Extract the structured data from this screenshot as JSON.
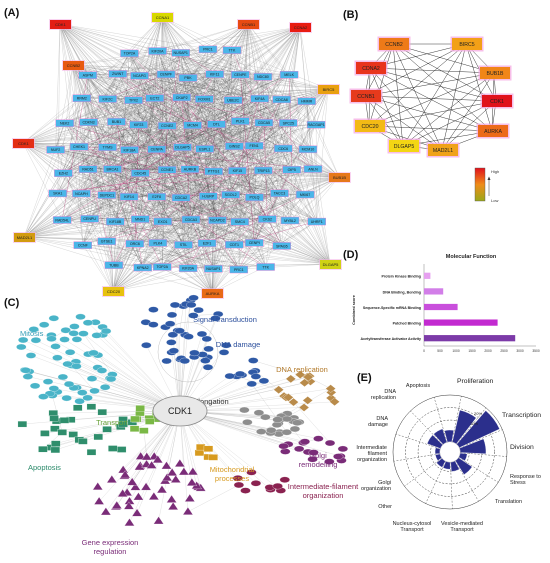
{
  "panels": {
    "a": {
      "label": "(A)",
      "hubs": [
        {
          "name": "CCNA1",
          "color": "#d8d800"
        },
        {
          "name": "CCNB1",
          "color": "#e84a12"
        },
        {
          "name": "BIRC5",
          "color": "#e9a010"
        },
        {
          "name": "CCNB2",
          "color": "#e75a10"
        },
        {
          "name": "CDK1",
          "color": "#e32d14"
        },
        {
          "name": "BUB1B",
          "color": "#e6781b"
        },
        {
          "name": "MAD2L1",
          "color": "#d29b10"
        },
        {
          "name": "CDC20",
          "color": "#e7c20f"
        },
        {
          "name": "AURKA",
          "color": "#e86a17"
        },
        {
          "name": "DLGAP5",
          "color": "#cfd214"
        },
        {
          "name": "CCNA2",
          "color": "#e81c12"
        },
        {
          "name": "CDK1",
          "color": "#e21d15"
        }
      ],
      "nodes": [
        "TOP2A",
        "KIF20A",
        "NUSAP1",
        "PRC1",
        "TTK",
        "ASPM",
        "ZWINT",
        "NCAPG",
        "CENPF",
        "PBK",
        "KIF11",
        "CENPE",
        "NDC80",
        "MELK",
        "RRM2",
        "KIF2C",
        "TPX2",
        "ECT2",
        "CKAP2",
        "FOXM1",
        "UBE2C",
        "KIF4A",
        "CDCA8",
        "HMMR",
        "NEK2",
        "CDKN3",
        "BUB1",
        "KIF23",
        "CCNE2",
        "MCM4",
        "DTL",
        "PLK1",
        "CDCA5",
        "SPC25",
        "RACGAP1",
        "NUF2",
        "CHEK1",
        "TYMS",
        "KIF18A",
        "CENPA",
        "DLGAP5",
        "ESPL1",
        "GINS2",
        "FEN1",
        "CDC6",
        "MCM10",
        "EZH2",
        "RAD51",
        "BRCA1",
        "CDC45",
        "CCNE1",
        "AURKB",
        "PTTG1",
        "KIF15",
        "TRIP13",
        "OIP5",
        "ANLN",
        "SKA1",
        "NCAPH",
        "DEPDC1",
        "KIF14",
        "E2F8",
        "CDCA2",
        "HJURP",
        "SGOL2",
        "POLQ",
        "TACC3",
        "MKI67",
        "RAD54L",
        "CENPU",
        "KIF18B",
        "MND1",
        "EXO1",
        "CDCA3",
        "NCAPD2",
        "SMC4",
        "CKS2",
        "MYBL2",
        "UHRF1",
        "CCNF",
        "GTSE1",
        "ORC6",
        "PLK4",
        "STIL",
        "E2F1",
        "CDT1",
        "CENPI",
        "SPAG5",
        "TUBB",
        "KPNA2"
      ]
    },
    "b": {
      "label": "(B)",
      "nodes": [
        {
          "name": "CCNB2",
          "color": "#ee7a18"
        },
        {
          "name": "BIRC5",
          "color": "#f2a017"
        },
        {
          "name": "CDNA2",
          "color": "#e8341d"
        },
        {
          "name": "BUB1B",
          "color": "#f08618"
        },
        {
          "name": "CCNB1",
          "color": "#e63a1c"
        },
        {
          "name": "CDK1",
          "color": "#e0121c"
        },
        {
          "name": "CDC20",
          "color": "#f3ba15"
        },
        {
          "name": "AURKA",
          "color": "#ec6a1a"
        },
        {
          "name": "DLGAP5",
          "color": "#f3d614"
        },
        {
          "name": "MAD2L1",
          "color": "#f0a219"
        }
      ],
      "legend": {
        "high": "High",
        "low": "Low"
      }
    },
    "c": {
      "label": "(C)",
      "center": "CDK1",
      "categories": [
        {
          "name": "Mitosis",
          "color": "#3aa0b8"
        },
        {
          "name": "Signal transduction",
          "color": "#2c4f9c"
        },
        {
          "name": "DNA damage",
          "color": "#2c4f9c"
        },
        {
          "name": "DNA replication",
          "color": "#b37a2a"
        },
        {
          "name": "Elongation",
          "color": "#333333"
        },
        {
          "name": "Transport",
          "color": "#6aa33a"
        },
        {
          "name": "Apoptosis",
          "color": "#2a8a6a"
        },
        {
          "name": "Mitochondrial processes",
          "color": "#d79a1e"
        },
        {
          "name": "Golgi remodelling",
          "color": "#7a2c78"
        },
        {
          "name": "Intermediate-filament organization",
          "color": "#8a2250"
        },
        {
          "name": "Gene expression regulation",
          "color": "#7a2c78"
        }
      ]
    },
    "d": {
      "label": "(D)",
      "chart_data": {
        "type": "bar",
        "title": "Molecular Function",
        "ylabel": "Combined score",
        "categories": [
          "Protein Kinase Binding",
          "DNA Binding, Bending",
          "Sequence-Specific mRNA Binding",
          "Patched Binding",
          "Acetyltransferase Activator Activity"
        ],
        "values": [
          200,
          600,
          1050,
          2300,
          2850
        ],
        "colors": [
          "#e6a0f0",
          "#d27ee8",
          "#c94fdc",
          "#c22ad0",
          "#7c3aa8"
        ],
        "xticks": [
          0,
          500,
          1000,
          1500,
          2000,
          2500,
          3000,
          3500
        ],
        "xlim": [
          0,
          3500
        ]
      }
    },
    "e": {
      "label": "(E)",
      "chart_data": {
        "type": "polar-bar",
        "categories": [
          "Proliferation",
          "Transcription",
          "Division",
          "Response to Stress",
          "Translation",
          "Vesicle-mediated Transport",
          "Nucleus-cytosol Transport",
          "Other",
          "Golgi organization",
          "Intermediate filament organization",
          "DNA damage",
          "DNA replication",
          "Apoptosis"
        ],
        "values": [
          0.7,
          0.95,
          0.55,
          0.15,
          0.35,
          0.2,
          0.15,
          0.15,
          0.1,
          0.1,
          0.3,
          0.3,
          0.25
        ],
        "rticks": [
          "10%",
          "20%"
        ]
      }
    }
  }
}
